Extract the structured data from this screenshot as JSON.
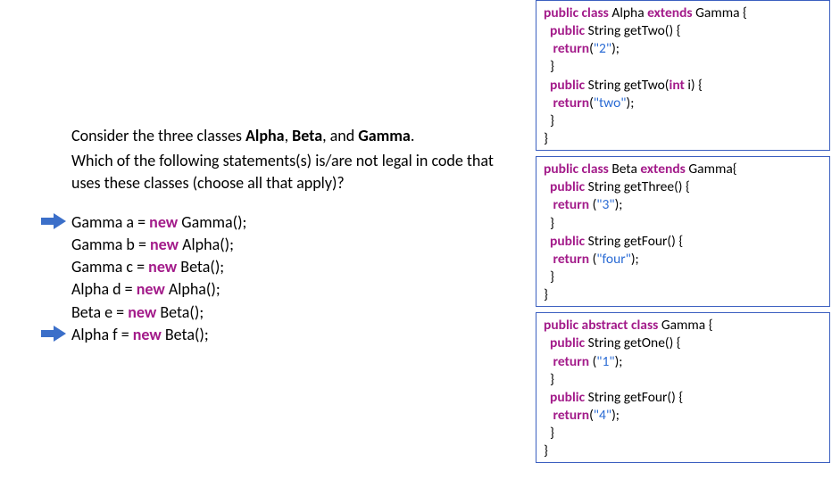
{
  "question": {
    "line1_prefix": "Consider the three classes ",
    "c1": "Alpha",
    "sep1": ", ",
    "c2": "Beta",
    "sep2": ", and ",
    "c3": "Gamma",
    "line1_suffix": ".",
    "line2": "Which of the following statements(s) is/are not legal in code that uses these classes (choose all that apply)?"
  },
  "answers": [
    {
      "lhs": "Gamma a = ",
      "new": "new",
      "rhs": " Gamma();",
      "arrow": true
    },
    {
      "lhs": "Gamma b = ",
      "new": "new",
      "rhs": " Alpha();",
      "arrow": false
    },
    {
      "lhs": "Gamma c = ",
      "new": "new",
      "rhs": " Beta();",
      "arrow": false
    },
    {
      "lhs": "Alpha d = ",
      "new": "new",
      "rhs": " Alpha();",
      "arrow": false
    },
    {
      "lhs": "Beta e = ",
      "new": "new",
      "rhs": " Beta();",
      "arrow": false
    },
    {
      "lhs": "Alpha f = ",
      "new": "new",
      "rhs": " Beta();",
      "arrow": true
    }
  ],
  "arrow_color": "#3b6fc9",
  "code_boxes": {
    "alpha": {
      "tokens": [
        [
          "kwbold",
          "public class"
        ],
        [
          "plain",
          " Alpha "
        ],
        [
          "kwbold",
          "extends"
        ],
        [
          "plain",
          " Gamma {\n"
        ],
        [
          "plain",
          "  "
        ],
        [
          "kwbold",
          "public"
        ],
        [
          "plain",
          " String getTwo() {\n"
        ],
        [
          "plain",
          "   "
        ],
        [
          "kwbold",
          "return"
        ],
        [
          "plain",
          "("
        ],
        [
          "str",
          "\"2\""
        ],
        [
          "plain",
          ");\n"
        ],
        [
          "plain",
          "  }\n"
        ],
        [
          "plain",
          "  "
        ],
        [
          "kwbold",
          "public"
        ],
        [
          "plain",
          " String getTwo("
        ],
        [
          "kwbold",
          "int"
        ],
        [
          "plain",
          " i) {\n"
        ],
        [
          "plain",
          "   "
        ],
        [
          "kwbold",
          "return"
        ],
        [
          "plain",
          "("
        ],
        [
          "str",
          "\"two\""
        ],
        [
          "plain",
          ");\n"
        ],
        [
          "plain",
          "  }\n"
        ],
        [
          "plain",
          "}"
        ]
      ]
    },
    "beta": {
      "tokens": [
        [
          "kwbold",
          "public class "
        ],
        [
          "plain",
          "Beta "
        ],
        [
          "kwbold",
          "extends"
        ],
        [
          "plain",
          " Gamma{\n"
        ],
        [
          "plain",
          "  "
        ],
        [
          "kwbold",
          "public"
        ],
        [
          "plain",
          " String getThree() {\n"
        ],
        [
          "plain",
          "   "
        ],
        [
          "kwbold",
          "return"
        ],
        [
          "plain",
          " ("
        ],
        [
          "str",
          "\"3\""
        ],
        [
          "plain",
          ");\n"
        ],
        [
          "plain",
          "  }\n"
        ],
        [
          "plain",
          "  "
        ],
        [
          "kwbold",
          "public"
        ],
        [
          "plain",
          " String getFour() {\n"
        ],
        [
          "plain",
          "   "
        ],
        [
          "kwbold",
          "return"
        ],
        [
          "plain",
          " ("
        ],
        [
          "str",
          "\"four\""
        ],
        [
          "plain",
          ");\n"
        ],
        [
          "plain",
          "  }\n"
        ],
        [
          "plain",
          "}"
        ]
      ]
    },
    "gamma": {
      "tokens": [
        [
          "kwbold",
          "public abstract class "
        ],
        [
          "plain",
          "Gamma {\n"
        ],
        [
          "plain",
          "  "
        ],
        [
          "kwbold",
          "public"
        ],
        [
          "plain",
          " String getOne() {\n"
        ],
        [
          "plain",
          "   "
        ],
        [
          "kwbold",
          "return"
        ],
        [
          "plain",
          " ("
        ],
        [
          "str",
          "\"1\""
        ],
        [
          "plain",
          ");\n"
        ],
        [
          "plain",
          "  }\n"
        ],
        [
          "plain",
          "  "
        ],
        [
          "kwbold",
          "public"
        ],
        [
          "plain",
          " String getFour() {\n"
        ],
        [
          "plain",
          "   "
        ],
        [
          "kwbold",
          "return"
        ],
        [
          "plain",
          "("
        ],
        [
          "str",
          "\"4\""
        ],
        [
          "plain",
          ");\n"
        ],
        [
          "plain",
          "  }\n"
        ],
        [
          "plain",
          "}"
        ]
      ]
    }
  }
}
